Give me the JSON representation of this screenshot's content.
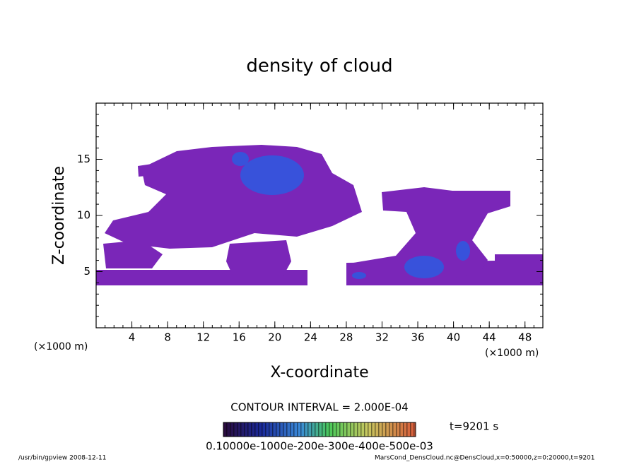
{
  "chart_data": {
    "type": "contour",
    "title": "density of cloud",
    "x_label": "X-coordinate",
    "y_label": "Z-coordinate",
    "x_unit_label": "(×1000 m)",
    "xlim": [
      0,
      50
    ],
    "ylim": [
      0,
      20
    ],
    "xticks": [
      4,
      8,
      12,
      16,
      20,
      24,
      28,
      32,
      36,
      40,
      44,
      48
    ],
    "yticks": [
      5,
      10,
      15
    ],
    "contour_interval": "CONTOUR INTERVAL = 2.000E-04",
    "time_label": "t=9201 s",
    "colorbar_labels": "0.10000e-1000e-200e-300e-400e-500e-03",
    "footer_left": "/usr/bin/gpview   2008-12-11",
    "footer_right": "MarsCond_DensCloud.nc@DensCloud,x=0:50000,z=0:20000,t=9201"
  }
}
